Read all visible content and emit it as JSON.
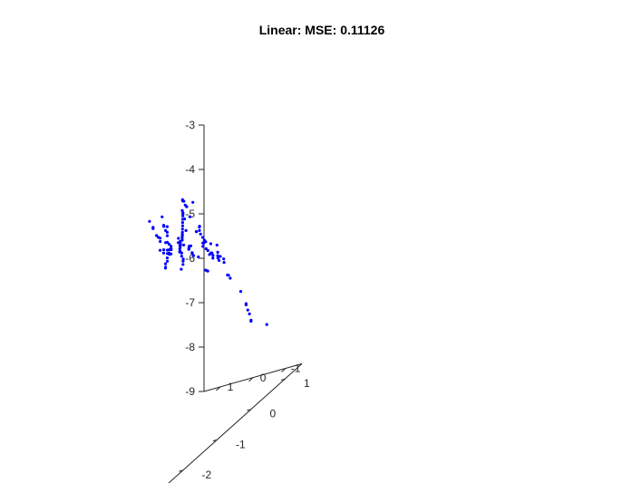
{
  "chart_data": {
    "type": "scatter",
    "title": "Linear: MSE: 0.11126",
    "xlabel": "",
    "ylabel": "",
    "zlabel": "",
    "grid": false,
    "marker_color": "#0000ff",
    "z_axis": {
      "range": [
        -9,
        -3
      ],
      "ticks": [
        -3,
        -4,
        -5,
        -6,
        -7,
        -8,
        -9
      ],
      "tick_labels": [
        "-3",
        "-4",
        "-5",
        "-6",
        "-7",
        "-8",
        "-9"
      ]
    },
    "front_axis": {
      "range": [
        -1.5,
        1.5
      ],
      "ticks": [
        1,
        0,
        -1
      ],
      "tick_labels": [
        "1",
        "0",
        "-1"
      ]
    },
    "right_axis": {
      "range": [
        -2.5,
        1.5
      ],
      "ticks": [
        -2,
        -1,
        0,
        1
      ],
      "tick_labels": [
        "-2",
        "-1",
        "0",
        "1"
      ]
    },
    "points": [
      {
        "a": -1.1,
        "b": -2.6,
        "z": -2.9
      },
      {
        "a": -1.0,
        "b": -2.4,
        "z": -3.15
      },
      {
        "a": -0.95,
        "b": -2.35,
        "z": -3.2
      },
      {
        "a": -0.9,
        "b": -2.2,
        "z": -3.45
      },
      {
        "a": -0.85,
        "b": -2.1,
        "z": -3.55
      },
      {
        "a": -0.75,
        "b": -1.95,
        "z": -3.65
      },
      {
        "a": -0.7,
        "b": -1.9,
        "z": -3.75
      },
      {
        "a": -0.8,
        "b": -2.0,
        "z": -3.9
      },
      {
        "a": -0.55,
        "b": -1.7,
        "z": -3.3
      },
      {
        "a": -0.6,
        "b": -1.7,
        "z": -3.5
      },
      {
        "a": -0.55,
        "b": -1.65,
        "z": -3.55
      },
      {
        "a": -0.6,
        "b": -1.6,
        "z": -3.6
      },
      {
        "a": -0.5,
        "b": -1.55,
        "z": -3.7
      },
      {
        "a": -0.55,
        "b": -1.55,
        "z": -3.75
      },
      {
        "a": -0.5,
        "b": -1.5,
        "z": -3.85
      },
      {
        "a": -0.55,
        "b": -1.6,
        "z": -3.95
      },
      {
        "a": -0.5,
        "b": -1.5,
        "z": -4.0
      },
      {
        "a": -0.45,
        "b": -1.4,
        "z": -4.1
      },
      {
        "a": -0.6,
        "b": -1.7,
        "z": -4.05
      },
      {
        "a": -0.65,
        "b": -1.75,
        "z": -4.1
      },
      {
        "a": -0.45,
        "b": -1.45,
        "z": -4.2
      },
      {
        "a": -0.4,
        "b": -1.35,
        "z": -4.25
      },
      {
        "a": -0.4,
        "b": -1.4,
        "z": -4.3
      },
      {
        "a": -0.5,
        "b": -1.5,
        "z": -4.35
      },
      {
        "a": -0.35,
        "b": -1.3,
        "z": -4.35
      },
      {
        "a": -0.3,
        "b": -1.25,
        "z": -4.4
      },
      {
        "a": -0.5,
        "b": -1.55,
        "z": -4.45
      },
      {
        "a": -0.45,
        "b": -1.45,
        "z": -4.45
      },
      {
        "a": -0.55,
        "b": -1.6,
        "z": -4.5
      },
      {
        "a": -0.6,
        "b": -1.65,
        "z": -4.5
      },
      {
        "a": -0.2,
        "b": -1.1,
        "z": -4.35
      },
      {
        "a": -0.15,
        "b": -1.05,
        "z": -4.4
      },
      {
        "a": -0.25,
        "b": -1.15,
        "z": -4.45
      },
      {
        "a": -0.3,
        "b": -1.2,
        "z": -4.25
      },
      {
        "a": 0.1,
        "b": -0.6,
        "z": -4.5
      },
      {
        "a": 0.2,
        "b": -0.5,
        "z": -4.45
      },
      {
        "a": 0.0,
        "b": -0.65,
        "z": -4.55
      },
      {
        "a": -0.05,
        "b": -0.7,
        "z": -4.6
      },
      {
        "a": -0.1,
        "b": -0.75,
        "z": -4.65
      },
      {
        "a": 0.05,
        "b": -0.6,
        "z": -4.7
      },
      {
        "a": 0.15,
        "b": -0.5,
        "z": -4.75
      },
      {
        "a": 0.25,
        "b": -0.4,
        "z": -4.7
      },
      {
        "a": 0.1,
        "b": -0.5,
        "z": -4.8
      },
      {
        "a": 0.05,
        "b": -0.55,
        "z": -4.85
      },
      {
        "a": -0.05,
        "b": -0.6,
        "z": -4.9
      },
      {
        "a": -0.15,
        "b": -0.7,
        "z": -4.9
      },
      {
        "a": -0.2,
        "b": -0.75,
        "z": -4.95
      },
      {
        "a": -0.25,
        "b": -0.85,
        "z": -5.0
      },
      {
        "a": 0.3,
        "b": -0.35,
        "z": -4.6
      },
      {
        "a": 0.35,
        "b": -0.3,
        "z": -4.65
      },
      {
        "a": 0.4,
        "b": -0.2,
        "z": -4.6
      },
      {
        "a": 0.3,
        "b": -0.25,
        "z": -4.75
      },
      {
        "a": 0.45,
        "b": -0.2,
        "z": -4.75
      },
      {
        "a": 0.5,
        "b": -0.1,
        "z": -4.7
      },
      {
        "a": 0.55,
        "b": -0.05,
        "z": -4.6
      },
      {
        "a": 0.6,
        "b": 0.0,
        "z": -4.65
      },
      {
        "a": 0.65,
        "b": 0.05,
        "z": -4.6
      },
      {
        "a": 0.7,
        "b": 0.1,
        "z": -4.55
      },
      {
        "a": 0.75,
        "b": 0.15,
        "z": -4.5
      },
      {
        "a": 0.8,
        "b": 0.2,
        "z": -4.45
      },
      {
        "a": 0.85,
        "b": 0.25,
        "z": -4.4
      },
      {
        "a": 0.9,
        "b": 0.3,
        "z": -4.35
      },
      {
        "a": 0.95,
        "b": 0.35,
        "z": -4.3
      },
      {
        "a": 1.0,
        "b": 0.4,
        "z": -4.35
      },
      {
        "a": 0.9,
        "b": 0.35,
        "z": -4.45
      },
      {
        "a": 0.7,
        "b": 0.2,
        "z": -4.65
      },
      {
        "a": 0.8,
        "b": 0.5,
        "z": -4.2
      },
      {
        "a": 0.3,
        "b": -0.1,
        "z": -4.95
      },
      {
        "a": 0.45,
        "b": 0.05,
        "z": -5.0
      },
      {
        "a": 0.55,
        "b": 0.15,
        "z": -5.0
      },
      {
        "a": 0.6,
        "b": 0.25,
        "z": -5.05
      },
      {
        "a": 0.2,
        "b": -0.1,
        "z": -5.05
      },
      {
        "a": 0.1,
        "b": -0.15,
        "z": -5.1
      },
      {
        "a": 0.4,
        "b": 0.1,
        "z": -5.15
      },
      {
        "a": 1.2,
        "b": 0.7,
        "z": -4.35
      },
      {
        "a": 1.3,
        "b": 0.8,
        "z": -4.4
      },
      {
        "a": 1.45,
        "b": 0.9,
        "z": -4.4
      },
      {
        "a": 1.7,
        "b": 1.1,
        "z": -4.4
      },
      {
        "a": 1.75,
        "b": 1.1,
        "z": -4.6
      },
      {
        "a": 1.95,
        "b": 1.3,
        "z": -4.45
      },
      {
        "a": 2.0,
        "b": 1.35,
        "z": -4.5
      },
      {
        "a": 1.1,
        "b": 0.7,
        "z": -4.6
      },
      {
        "a": 1.15,
        "b": 1.0,
        "z": -5.7
      },
      {
        "a": 0.6,
        "b": 0.5,
        "z": -4.8
      },
      {
        "a": 0.65,
        "b": 0.55,
        "z": -4.9
      },
      {
        "a": 0.75,
        "b": 0.65,
        "z": -4.85
      },
      {
        "a": 0.6,
        "b": 0.6,
        "z": -5.1
      },
      {
        "a": 0.5,
        "b": 0.55,
        "z": -5.15
      },
      {
        "a": 0.65,
        "b": 0.65,
        "z": -5.25
      },
      {
        "a": 0.7,
        "b": 0.7,
        "z": -5.35
      },
      {
        "a": 0.55,
        "b": 0.65,
        "z": -5.4
      },
      {
        "a": 0.6,
        "b": 0.75,
        "z": -5.5
      },
      {
        "a": 0.55,
        "b": 0.75,
        "z": -5.6
      },
      {
        "a": 0.45,
        "b": 0.7,
        "z": -5.55
      },
      {
        "a": 0.55,
        "b": 0.85,
        "z": -5.75
      },
      {
        "a": 0.45,
        "b": 0.9,
        "z": -5.8
      },
      {
        "a": 0.35,
        "b": 0.8,
        "z": -5.7
      },
      {
        "a": 0.3,
        "b": 0.75,
        "z": -5.6
      },
      {
        "a": 0.85,
        "b": 0.65,
        "z": -4.95
      },
      {
        "a": 0.95,
        "b": 0.75,
        "z": -5.0
      },
      {
        "a": 0.2,
        "b": 0.15,
        "z": -4.8
      },
      {
        "a": 0.25,
        "b": 0.35,
        "z": -5.1
      },
      {
        "a": 0.15,
        "b": 0.4,
        "z": -5.2
      },
      {
        "a": 0.05,
        "b": 0.1,
        "z": -5.0
      },
      {
        "a": -0.15,
        "b": 0.15,
        "z": -5.3
      },
      {
        "a": -0.25,
        "b": 0.3,
        "z": -5.5
      },
      {
        "a": -0.3,
        "b": 0.35,
        "z": -5.6
      },
      {
        "a": -0.65,
        "b": -0.3,
        "z": -5.15
      },
      {
        "a": -0.2,
        "b": 0.25,
        "z": -5.2
      },
      {
        "a": 0.05,
        "b": 0.55,
        "z": -5.7
      },
      {
        "a": -0.05,
        "b": 0.6,
        "z": -5.8
      },
      {
        "a": 0.05,
        "b": 0.8,
        "z": -6.2
      },
      {
        "a": -0.45,
        "b": 0.35,
        "z": -6.0
      },
      {
        "a": -0.45,
        "b": 0.4,
        "z": -6.1
      },
      {
        "a": -0.25,
        "b": 0.9,
        "z": -6.7
      },
      {
        "a": -0.05,
        "b": 1.25,
        "z": -7.2
      },
      {
        "a": -0.1,
        "b": 1.2,
        "z": -7.15
      },
      {
        "a": -0.05,
        "b": 1.3,
        "z": -7.35
      },
      {
        "a": -0.1,
        "b": 1.3,
        "z": -7.45
      },
      {
        "a": -0.2,
        "b": 1.25,
        "z": -7.6
      },
      {
        "a": -0.15,
        "b": 1.3,
        "z": -7.6
      },
      {
        "a": 0.15,
        "b": 2.05,
        "z": -8.15
      },
      {
        "a": -0.95,
        "b": -0.8,
        "z": -5.2
      },
      {
        "a": -0.85,
        "b": -0.65,
        "z": -5.3
      },
      {
        "a": -0.75,
        "b": -0.55,
        "z": -5.35
      }
    ]
  }
}
